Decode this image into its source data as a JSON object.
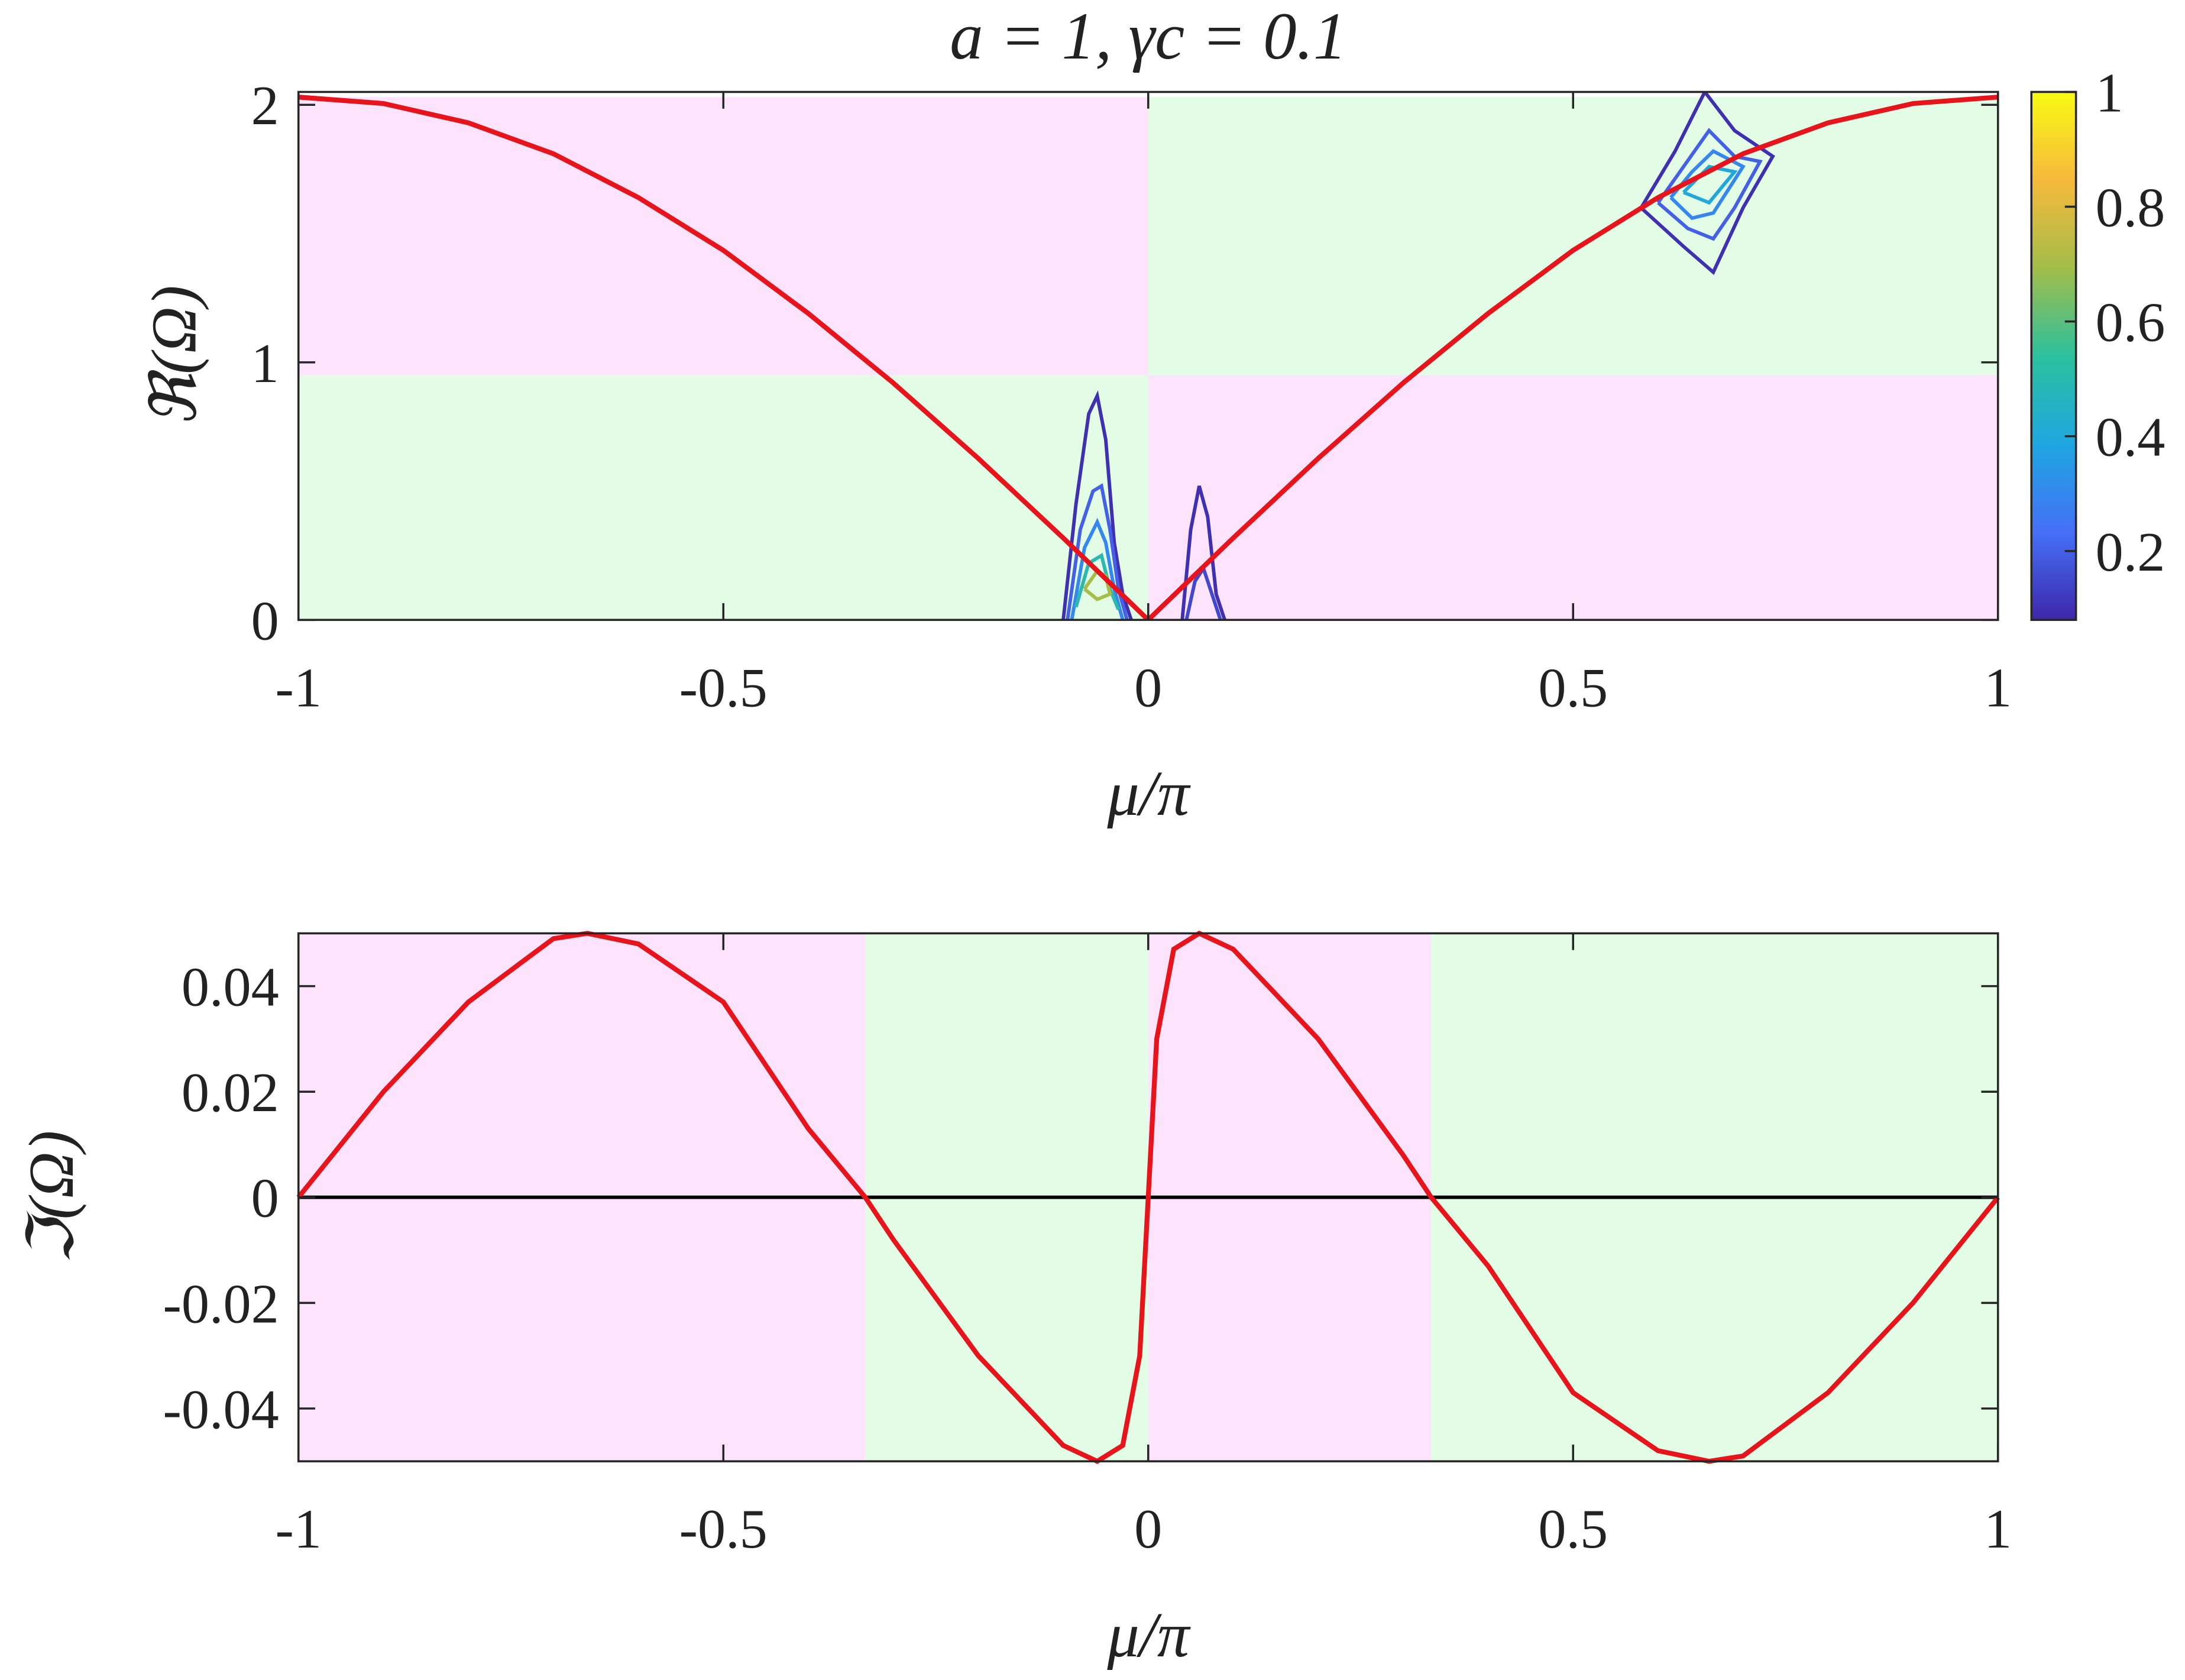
{
  "chart_data": [
    {
      "type": "line",
      "title": "a = 1, γc = 0.1",
      "x_label": "μ/π",
      "y_label": "ℜ(Ω)",
      "xlim": [
        -1,
        1
      ],
      "ylim": [
        0,
        2.05
      ],
      "xticks": [
        -1,
        -0.5,
        0,
        0.5,
        1
      ],
      "yticks": [
        0,
        1,
        2
      ],
      "regions": [
        {
          "x0": -1,
          "x1": 0,
          "y0": 0.95,
          "y1": 2.03,
          "color": "#fde3fb"
        },
        {
          "x0": 0,
          "x1": 1,
          "y0": 0.95,
          "y1": 2.03,
          "color": "#e3fce6"
        },
        {
          "x0": -1,
          "x1": 0,
          "y0": 0,
          "y1": 0.95,
          "color": "#e3fce6"
        },
        {
          "x0": 0,
          "x1": 1,
          "y0": 0,
          "y1": 0.95,
          "color": "#fde3fb"
        }
      ],
      "x": [
        -1,
        -0.9,
        -0.8,
        -0.7,
        -0.6,
        -0.5,
        -0.4,
        -0.3,
        -0.2,
        -0.1,
        0,
        0.1,
        0.2,
        0.3,
        0.4,
        0.5,
        0.6,
        0.7,
        0.8,
        0.9,
        1
      ],
      "series": [
        {
          "color": "#e8141c",
          "values": [
            2.03,
            2.005,
            1.93,
            1.81,
            1.64,
            1.435,
            1.19,
            0.92,
            0.627,
            0.318,
            0,
            0.318,
            0.627,
            0.92,
            1.19,
            1.435,
            1.64,
            1.81,
            1.93,
            2.005,
            2.03
          ]
        }
      ],
      "contours": [
        {
          "level": 0.1,
          "x": [
            0.58,
            0.62,
            0.655,
            0.69,
            0.735,
            0.7,
            0.665,
            0.63,
            0.58
          ],
          "y": [
            1.6,
            1.82,
            2.05,
            1.9,
            1.8,
            1.6,
            1.35,
            1.45,
            1.6
          ]
        },
        {
          "level": 0.2,
          "x": [
            0.6,
            0.63,
            0.66,
            0.69,
            0.72,
            0.69,
            0.665,
            0.635,
            0.6
          ],
          "y": [
            1.62,
            1.76,
            1.9,
            1.8,
            1.78,
            1.6,
            1.48,
            1.52,
            1.62
          ]
        },
        {
          "level": 0.3,
          "x": [
            0.615,
            0.64,
            0.665,
            0.7,
            0.665,
            0.64,
            0.615
          ],
          "y": [
            1.64,
            1.74,
            1.82,
            1.76,
            1.58,
            1.56,
            1.64
          ]
        },
        {
          "level": 0.4,
          "x": [
            0.63,
            0.66,
            0.69,
            0.66,
            0.63
          ],
          "y": [
            1.66,
            1.76,
            1.74,
            1.62,
            1.66
          ]
        },
        {
          "level": 0.1,
          "x": [
            -0.1,
            -0.085,
            -0.07,
            -0.06,
            -0.05,
            -0.04,
            -0.03,
            -0.02
          ],
          "y": [
            0,
            0.45,
            0.8,
            0.87,
            0.7,
            0.3,
            0.1,
            0
          ]
        },
        {
          "level": 0.2,
          "x": [
            -0.095,
            -0.08,
            -0.065,
            -0.055,
            -0.045,
            -0.035,
            -0.025
          ],
          "y": [
            0,
            0.35,
            0.5,
            0.52,
            0.35,
            0.12,
            0
          ]
        },
        {
          "level": 0.3,
          "x": [
            -0.09,
            -0.075,
            -0.06,
            -0.05,
            -0.04,
            -0.03
          ],
          "y": [
            0,
            0.28,
            0.38,
            0.3,
            0.12,
            0
          ]
        },
        {
          "level": 0.5,
          "x": [
            -0.085,
            -0.07,
            -0.055,
            -0.045,
            -0.035
          ],
          "y": [
            0.05,
            0.22,
            0.25,
            0.12,
            0.04
          ]
        },
        {
          "level": 0.7,
          "x": [
            -0.075,
            -0.06,
            -0.05,
            -0.045,
            -0.06,
            -0.075
          ],
          "y": [
            0.12,
            0.19,
            0.17,
            0.1,
            0.08,
            0.12
          ]
        },
        {
          "level": 0.1,
          "x": [
            0.04,
            0.05,
            0.06,
            0.07,
            0.08,
            0.09
          ],
          "y": [
            0,
            0.35,
            0.52,
            0.4,
            0.1,
            0
          ]
        },
        {
          "level": 0.15,
          "x": [
            0.045,
            0.055,
            0.065,
            0.075,
            0.085
          ],
          "y": [
            0,
            0.15,
            0.2,
            0.1,
            0
          ]
        }
      ],
      "colormap": [
        "#3e26a8",
        "#4570f8",
        "#1fa6e0",
        "#2dc09e",
        "#a3bd4a",
        "#f6b93c",
        "#f9fb15"
      ],
      "clim": [
        0.08,
        1
      ],
      "cticks": [
        0.2,
        0.4,
        0.6,
        0.8,
        1
      ]
    },
    {
      "type": "line",
      "x_label": "μ/π",
      "y_label": "ℑ(Ω)",
      "xlim": [
        -1,
        1
      ],
      "ylim": [
        -0.05,
        0.05
      ],
      "xticks": [
        -1,
        -0.5,
        0,
        0.5,
        1
      ],
      "yticks": [
        -0.04,
        -0.02,
        0,
        0.02,
        0.04
      ],
      "zero_line": true,
      "regions": [
        {
          "x0": -1,
          "x1": -0.333,
          "color": "#fde3fb"
        },
        {
          "x0": -0.333,
          "x1": 0,
          "color": "#e3fce6"
        },
        {
          "x0": 0,
          "x1": 0.333,
          "color": "#fde3fb"
        },
        {
          "x0": 0.333,
          "x1": 1,
          "color": "#e3fce6"
        }
      ],
      "x": [
        -1,
        -0.9,
        -0.8,
        -0.7,
        -0.66,
        -0.6,
        -0.5,
        -0.4,
        -0.333,
        -0.3,
        -0.2,
        -0.1,
        -0.06,
        -0.03,
        -0.01,
        0,
        0.01,
        0.03,
        0.06,
        0.1,
        0.2,
        0.3,
        0.333,
        0.4,
        0.5,
        0.6,
        0.66,
        0.7,
        0.8,
        0.9,
        1
      ],
      "series": [
        {
          "color": "#e8141c",
          "values": [
            0,
            0.02,
            0.037,
            0.049,
            0.05,
            0.048,
            0.037,
            0.013,
            0,
            -0.008,
            -0.03,
            -0.047,
            -0.05,
            -0.047,
            -0.03,
            0,
            0.03,
            0.047,
            0.05,
            0.047,
            0.03,
            0.008,
            0,
            -0.013,
            -0.037,
            -0.048,
            -0.05,
            -0.049,
            -0.037,
            -0.02,
            0
          ]
        }
      ]
    }
  ]
}
